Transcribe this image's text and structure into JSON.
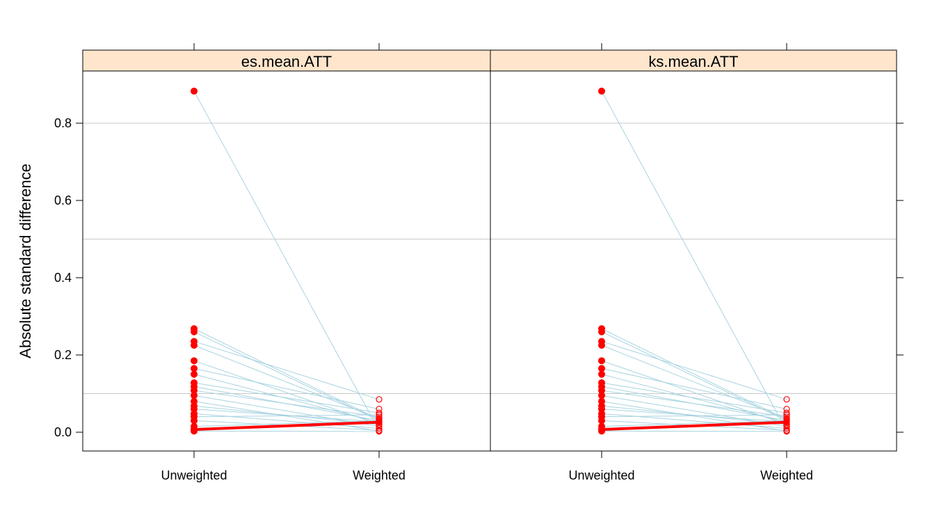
{
  "chart_data": {
    "type": "line",
    "ylabel": "Absolute standard difference",
    "ylim": [
      -0.05,
      0.93
    ],
    "yticks": [
      0.0,
      0.2,
      0.4,
      0.6,
      0.8
    ],
    "ytick_labels": [
      "0.0",
      "0.2",
      "0.4",
      "0.6",
      "0.8"
    ],
    "reference_lines": [
      0.1,
      0.5,
      0.8
    ],
    "categories": [
      "Unweighted",
      "Weighted"
    ],
    "colors": {
      "strip_bg": "#ffe5cc",
      "line": "#a7d3e0",
      "highlight": "#ff0000",
      "grid": "#c8c8c8"
    },
    "panels": [
      {
        "label": "es.mean.ATT",
        "pairs": [
          [
            0.883,
            0.004
          ],
          [
            0.268,
            0.033
          ],
          [
            0.26,
            0.03
          ],
          [
            0.235,
            0.085
          ],
          [
            0.225,
            0.035
          ],
          [
            0.185,
            0.02
          ],
          [
            0.165,
            0.06
          ],
          [
            0.15,
            0.025
          ],
          [
            0.128,
            0.05
          ],
          [
            0.118,
            0.03
          ],
          [
            0.108,
            0.04
          ],
          [
            0.095,
            0.015
          ],
          [
            0.08,
            0.003
          ],
          [
            0.068,
            0.02
          ],
          [
            0.06,
            0.027
          ],
          [
            0.048,
            0.01
          ],
          [
            0.04,
            0.045
          ],
          [
            0.03,
            0.005
          ],
          [
            0.015,
            0.03
          ],
          [
            0.008,
            0.025
          ],
          [
            0.003,
            0.002
          ]
        ],
        "highlight_pair": [
          0.007,
          0.026
        ]
      },
      {
        "label": "ks.mean.ATT",
        "pairs": [
          [
            0.883,
            0.004
          ],
          [
            0.268,
            0.033
          ],
          [
            0.26,
            0.03
          ],
          [
            0.235,
            0.085
          ],
          [
            0.225,
            0.035
          ],
          [
            0.185,
            0.02
          ],
          [
            0.165,
            0.06
          ],
          [
            0.15,
            0.025
          ],
          [
            0.128,
            0.05
          ],
          [
            0.118,
            0.03
          ],
          [
            0.108,
            0.04
          ],
          [
            0.095,
            0.015
          ],
          [
            0.08,
            0.003
          ],
          [
            0.068,
            0.02
          ],
          [
            0.06,
            0.027
          ],
          [
            0.048,
            0.01
          ],
          [
            0.04,
            0.045
          ],
          [
            0.03,
            0.005
          ],
          [
            0.015,
            0.03
          ],
          [
            0.008,
            0.025
          ],
          [
            0.003,
            0.002
          ]
        ],
        "highlight_pair": [
          0.007,
          0.026
        ]
      }
    ]
  }
}
